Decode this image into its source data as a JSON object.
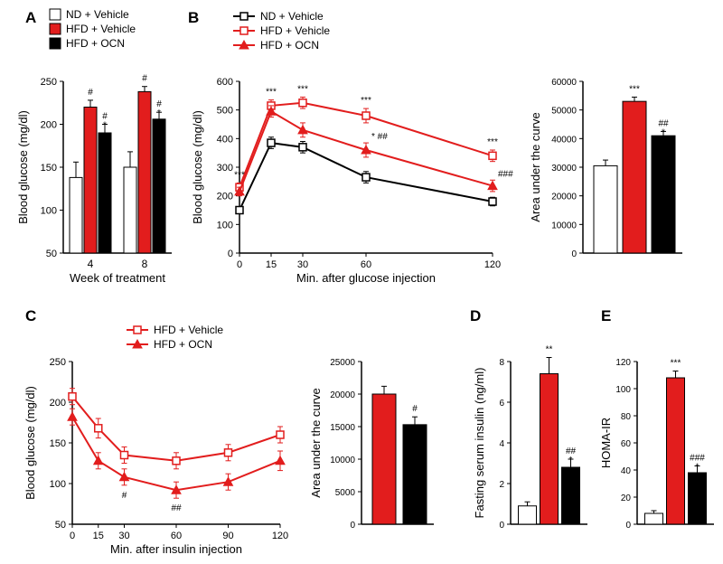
{
  "colors": {
    "nd_vehicle": "#ffffff",
    "hfd_vehicle": "#e21d1d",
    "hfd_ocn": "#000000",
    "stroke": "#000000",
    "line_red": "#e21d1d",
    "line_black": "#000000",
    "bg": "#ffffff"
  },
  "fonts": {
    "axis": 12,
    "label": 13,
    "panel": 17,
    "legend": 12,
    "sig": 10
  },
  "legend_top": {
    "items": [
      {
        "label": "ND + Vehicle",
        "fill": "#ffffff"
      },
      {
        "label": "HFD + Vehicle",
        "fill": "#e21d1d"
      },
      {
        "label": "HFD + OCN",
        "fill": "#000000"
      }
    ]
  },
  "panelA": {
    "label": "A",
    "ylabel": "Blood glucose (mg/dl)",
    "xlabel": "Week of treatment",
    "ylim": [
      50,
      250
    ],
    "yticks": [
      50,
      100,
      150,
      200,
      250
    ],
    "groups": [
      "4",
      "8"
    ],
    "bars": [
      [
        {
          "v": 138,
          "e": 18,
          "fill": "#ffffff",
          "sig": ""
        },
        {
          "v": 220,
          "e": 8,
          "fill": "#e21d1d",
          "sig": "#"
        },
        {
          "v": 190,
          "e": 10,
          "fill": "#000000",
          "sig": "#\n*"
        }
      ],
      [
        {
          "v": 150,
          "e": 18,
          "fill": "#ffffff",
          "sig": ""
        },
        {
          "v": 238,
          "e": 6,
          "fill": "#e21d1d",
          "sig": "#"
        },
        {
          "v": 206,
          "e": 8,
          "fill": "#000000",
          "sig": "#\n*"
        }
      ]
    ]
  },
  "panelB": {
    "label": "B",
    "legend": [
      {
        "label": "ND + Vehicle",
        "fill": "#ffffff",
        "stroke": "#000000",
        "marker": "square"
      },
      {
        "label": "HFD + Vehicle",
        "fill": "#ffffff",
        "stroke": "#e21d1d",
        "marker": "square"
      },
      {
        "label": "HFD + OCN",
        "fill": "#e21d1d",
        "stroke": "#e21d1d",
        "marker": "triangle"
      }
    ],
    "ylabel": "Blood glucose (mg/dl)",
    "xlabel": "Min. after glucose injection",
    "xticks": [
      0,
      15,
      30,
      60,
      120
    ],
    "ylim": [
      0,
      600
    ],
    "yticks": [
      0,
      100,
      200,
      300,
      400,
      500,
      600
    ],
    "series": {
      "nd": {
        "vals": [
          150,
          385,
          370,
          265,
          180
        ],
        "err": [
          10,
          20,
          20,
          20,
          15
        ],
        "color": "#000000",
        "fill": "#ffffff",
        "marker": "square"
      },
      "hfdv": {
        "vals": [
          230,
          515,
          525,
          480,
          340
        ],
        "err": [
          15,
          20,
          20,
          25,
          20
        ],
        "color": "#e21d1d",
        "fill": "#ffffff",
        "marker": "square"
      },
      "hfdo": {
        "vals": [
          215,
          495,
          430,
          360,
          235
        ],
        "err": [
          15,
          20,
          25,
          25,
          20
        ],
        "color": "#e21d1d",
        "fill": "#e21d1d",
        "marker": "triangle"
      }
    },
    "sig_top": {
      "0": "***",
      "15": "***",
      "30": "***",
      "60": "***",
      "120": "***"
    },
    "sig_mid": {
      "60": "* ##",
      "120": "###"
    },
    "sig_low": {
      "60": "*"
    },
    "auc": {
      "ylabel": "Area under the curve",
      "ylim": [
        0,
        60000
      ],
      "yticks": [
        0,
        10000,
        20000,
        30000,
        40000,
        50000,
        60000
      ],
      "bars": [
        {
          "v": 30500,
          "e": 2000,
          "fill": "#ffffff",
          "sig": ""
        },
        {
          "v": 53000,
          "e": 1500,
          "fill": "#e21d1d",
          "sig": "***"
        },
        {
          "v": 41000,
          "e": 1500,
          "fill": "#000000",
          "sig": "##\n*"
        }
      ]
    }
  },
  "panelC": {
    "label": "C",
    "legend": [
      {
        "label": "HFD + Vehicle",
        "fill": "#ffffff",
        "stroke": "#e21d1d",
        "marker": "square"
      },
      {
        "label": "HFD + OCN",
        "fill": "#e21d1d",
        "stroke": "#e21d1d",
        "marker": "triangle"
      }
    ],
    "ylabel": "Blood glucose (mg/dl)",
    "xlabel": "Min. after insulin injection",
    "xticks": [
      0,
      15,
      30,
      60,
      90,
      120
    ],
    "ylim": [
      50,
      250
    ],
    "yticks": [
      50,
      100,
      150,
      200,
      250
    ],
    "series": {
      "hfdv": {
        "vals": [
          207,
          168,
          135,
          128,
          138,
          160
        ],
        "err": [
          10,
          12,
          10,
          10,
          10,
          10
        ],
        "color": "#e21d1d",
        "fill": "#ffffff",
        "marker": "square"
      },
      "hfdo": {
        "vals": [
          182,
          128,
          108,
          92,
          102,
          128
        ],
        "err": [
          10,
          10,
          10,
          10,
          10,
          12
        ],
        "color": "#e21d1d",
        "fill": "#e21d1d",
        "marker": "triangle"
      }
    },
    "sig": {
      "30": "#",
      "60": "##"
    },
    "auc": {
      "ylabel": "Area under the curve",
      "ylim": [
        0,
        25000
      ],
      "yticks": [
        0,
        5000,
        10000,
        15000,
        20000,
        25000
      ],
      "bars": [
        {
          "v": 20000,
          "e": 1200,
          "fill": "#e21d1d",
          "sig": ""
        },
        {
          "v": 15300,
          "e": 1200,
          "fill": "#000000",
          "sig": "#"
        }
      ]
    }
  },
  "panelD": {
    "label": "D",
    "ylabel": "Fasting serum insulin (ng/ml)",
    "ylim": [
      0,
      8
    ],
    "yticks": [
      0,
      2,
      4,
      6,
      8
    ],
    "bars": [
      {
        "v": 0.9,
        "e": 0.2,
        "fill": "#ffffff",
        "sig": ""
      },
      {
        "v": 7.4,
        "e": 0.8,
        "fill": "#e21d1d",
        "sig": "**"
      },
      {
        "v": 2.8,
        "e": 0.4,
        "fill": "#000000",
        "sig": "##\n*"
      }
    ]
  },
  "panelE": {
    "label": "E",
    "ylabel": "HOMA-IR",
    "ylim": [
      0,
      120
    ],
    "yticks": [
      0,
      20,
      40,
      60,
      80,
      100,
      120
    ],
    "bars": [
      {
        "v": 8,
        "e": 2,
        "fill": "#ffffff",
        "sig": ""
      },
      {
        "v": 108,
        "e": 5,
        "fill": "#e21d1d",
        "sig": "***"
      },
      {
        "v": 38,
        "e": 5,
        "fill": "#000000",
        "sig": "###\n*"
      }
    ]
  }
}
